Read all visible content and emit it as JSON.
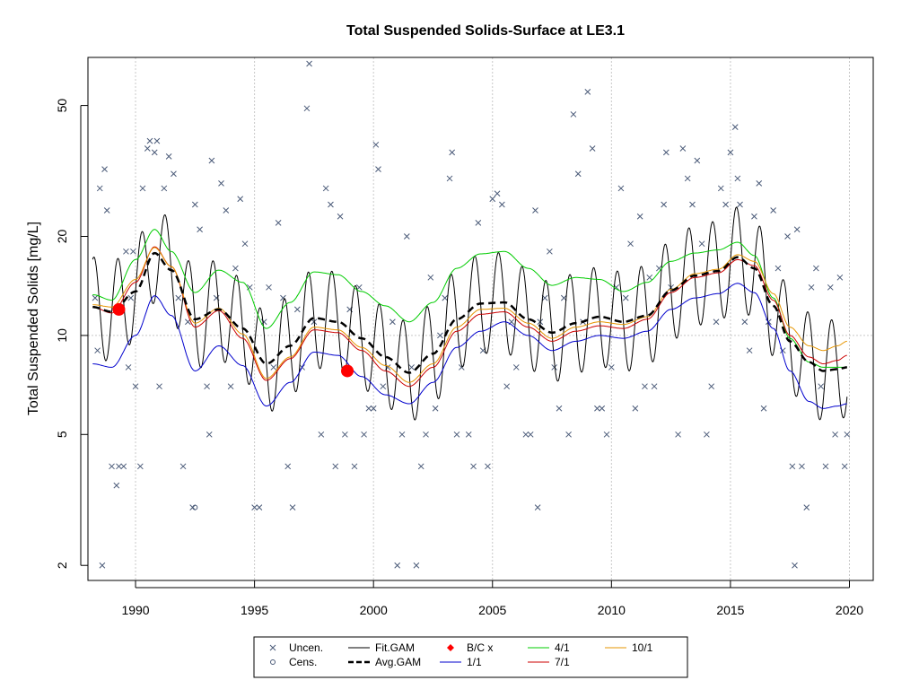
{
  "chart_data": {
    "type": "line",
    "title": "Total Suspended Solids-Surface at LE3.1",
    "xlabel": "",
    "ylabel": "Total Suspended Solids [mg/L]",
    "xlim": [
      1988.0,
      2021.0
    ],
    "ylim": [
      1.8,
      70
    ],
    "y_scale": "log",
    "x_ticks": [
      1990,
      1995,
      2000,
      2005,
      2010,
      2015,
      2020
    ],
    "y_ticks": [
      2,
      5,
      10,
      20,
      50
    ],
    "grid": true,
    "legend_position": "bottom",
    "legend": [
      {
        "label": "Uncen.",
        "symbol": "x",
        "color": "#4a5a78"
      },
      {
        "label": "Cens.",
        "symbol": "o",
        "color": "#4a5a78"
      },
      {
        "label": "Fit.GAM",
        "symbol": "line",
        "color": "#000000"
      },
      {
        "label": "Avg.GAM",
        "symbol": "dashed",
        "color": "#000000"
      },
      {
        "label": "B/C x",
        "symbol": "diamond",
        "color": "#ff0000"
      },
      {
        "label": "1/1",
        "symbol": "line",
        "color": "#0000cd"
      },
      {
        "label": "4/1",
        "symbol": "line",
        "color": "#00cc00"
      },
      {
        "label": "7/1",
        "symbol": "line",
        "color": "#cc0000"
      },
      {
        "label": "10/1",
        "symbol": "line",
        "color": "#e69500"
      }
    ],
    "series": [
      {
        "name": "Avg.GAM",
        "color": "#000000",
        "dash": "dashed",
        "x": [
          1988.2,
          1989,
          1990,
          1990.8,
          1991.5,
          1992.5,
          1993.5,
          1994.5,
          1995.5,
          1996.5,
          1997.5,
          1998.5,
          1999.5,
          2000.5,
          2001.5,
          2002.5,
          2003.5,
          2004.5,
          2005.5,
          2006.5,
          2007.5,
          2008.5,
          2009.5,
          2010.5,
          2011.5,
          2012.5,
          2013.5,
          2014.5,
          2015.3,
          2016,
          2016.8,
          2017.5,
          2018.3,
          2018.9,
          2019.5,
          2019.9
        ],
        "y": [
          12.2,
          11.8,
          13.6,
          17.8,
          15.8,
          11.2,
          12,
          10.5,
          8.2,
          9.3,
          11.3,
          11,
          9.8,
          8.6,
          7.7,
          8.8,
          11.2,
          12.5,
          12.6,
          11.2,
          10.2,
          10.9,
          11.4,
          11,
          11.5,
          13.7,
          15.2,
          15.7,
          17.3,
          16,
          12.3,
          9.6,
          8.3,
          7.8,
          7.9,
          8.0
        ]
      },
      {
        "name": "1/1",
        "color": "#0000cd",
        "dash": "solid",
        "x": [
          1988.2,
          1989,
          1990,
          1990.8,
          1991.5,
          1992.5,
          1993.5,
          1994.5,
          1995.5,
          1996.5,
          1997.5,
          1998.5,
          1999.5,
          2000.5,
          2001.5,
          2002.5,
          2003.5,
          2004.5,
          2005.5,
          2006.5,
          2007.5,
          2008.5,
          2009.5,
          2010.5,
          2011.5,
          2012.5,
          2013.5,
          2014.5,
          2015.3,
          2016,
          2016.8,
          2017.5,
          2018.3,
          2018.9,
          2019.5,
          2019.9
        ],
        "y": [
          8.2,
          8.0,
          10.0,
          13.2,
          11.5,
          7.8,
          9.3,
          8.1,
          6.1,
          7.2,
          8.9,
          8.7,
          7.5,
          6.6,
          6.2,
          7.2,
          9.2,
          10.3,
          11.0,
          10.0,
          9.0,
          9.6,
          10.0,
          9.8,
          10.3,
          12.0,
          13.0,
          13.4,
          14.4,
          13.5,
          10.5,
          7.8,
          6.3,
          6.0,
          6.1,
          6.2
        ]
      },
      {
        "name": "4/1",
        "color": "#00cc00",
        "dash": "solid",
        "x": [
          1988.2,
          1989,
          1990,
          1990.8,
          1991.5,
          1992.5,
          1993.5,
          1994.5,
          1995.5,
          1996.5,
          1997.5,
          1998.5,
          1999.5,
          2000.5,
          2001.5,
          2002.5,
          2003.5,
          2004.5,
          2005.5,
          2006.5,
          2007.5,
          2008.5,
          2009.5,
          2010.5,
          2011.5,
          2012.5,
          2013.5,
          2014.5,
          2015.3,
          2016,
          2016.8,
          2017.5,
          2018.3,
          2018.9,
          2019.5,
          2019.9
        ],
        "y": [
          13.3,
          12.8,
          17.0,
          21.0,
          18.0,
          13.5,
          15.8,
          14.5,
          10.5,
          12.6,
          15.6,
          15.3,
          13.6,
          12.3,
          11.0,
          12.6,
          16.0,
          17.7,
          18.0,
          16.0,
          14.2,
          15.0,
          14.8,
          13.6,
          14.5,
          16.8,
          17.8,
          18.2,
          19.2,
          17.5,
          13.0,
          9.8,
          8.3,
          8.0,
          8.0,
          8.0
        ]
      },
      {
        "name": "7/1",
        "color": "#cc0000",
        "dash": "solid",
        "x": [
          1988.2,
          1989,
          1990,
          1990.8,
          1991.5,
          1992.5,
          1993.5,
          1994.5,
          1995.5,
          1996.5,
          1997.5,
          1998.5,
          1999.5,
          2000.5,
          2001.5,
          2002.5,
          2003.5,
          2004.5,
          2005.5,
          2006.5,
          2007.5,
          2008.5,
          2009.5,
          2010.5,
          2011.5,
          2012.5,
          2013.5,
          2014.5,
          2015.3,
          2016,
          2016.8,
          2017.5,
          2018.3,
          2018.9,
          2019.5,
          2019.9
        ],
        "y": [
          12.2,
          11.7,
          14.5,
          18.6,
          16.2,
          10.6,
          11.9,
          9.8,
          7.3,
          8.5,
          10.4,
          10.2,
          9.0,
          7.8,
          7.0,
          8.0,
          10.3,
          11.6,
          11.8,
          10.6,
          9.6,
          10.3,
          10.7,
          10.5,
          11.2,
          13.5,
          15.0,
          15.5,
          17.0,
          16.3,
          12.8,
          10.0,
          8.6,
          8.2,
          8.4,
          8.7
        ]
      },
      {
        "name": "10/1",
        "color": "#e69500",
        "dash": "solid",
        "x": [
          1988.2,
          1989,
          1990,
          1990.8,
          1991.5,
          1992.5,
          1993.5,
          1994.5,
          1995.5,
          1996.5,
          1997.5,
          1998.5,
          1999.5,
          2000.5,
          2001.5,
          2002.5,
          2003.5,
          2004.5,
          2005.5,
          2006.5,
          2007.5,
          2008.5,
          2009.5,
          2010.5,
          2011.5,
          2012.5,
          2013.5,
          2014.5,
          2015.3,
          2016,
          2016.8,
          2017.5,
          2018.3,
          2018.9,
          2019.5,
          2019.9
        ],
        "y": [
          12.4,
          12.2,
          14.8,
          18.5,
          16.2,
          10.9,
          12.1,
          10.1,
          7.4,
          8.6,
          10.6,
          10.4,
          9.2,
          8.1,
          7.2,
          8.2,
          10.6,
          12.0,
          12.1,
          10.9,
          9.8,
          10.6,
          11.0,
          10.8,
          11.4,
          13.8,
          15.4,
          15.9,
          17.6,
          16.8,
          13.4,
          10.6,
          9.3,
          9.0,
          9.3,
          9.6
        ]
      }
    ],
    "fit_gam": {
      "name": "Fit.GAM",
      "color": "#000000",
      "seasonal_peak_month": 0.25,
      "amplitude_log_ratio": 0.35
    },
    "baseline_points": [
      {
        "label": "B/C x",
        "x": 1989.3,
        "y": 12.0,
        "color": "#ff0000"
      },
      {
        "label": "B/C x",
        "x": 1998.9,
        "y": 7.8,
        "color": "#ff0000"
      }
    ],
    "uncensored_points": [
      [
        1988.3,
        13
      ],
      [
        1988.4,
        9
      ],
      [
        1988.5,
        28
      ],
      [
        1988.6,
        2
      ],
      [
        1988.7,
        32
      ],
      [
        1988.8,
        24
      ],
      [
        1989.0,
        4
      ],
      [
        1989.2,
        3.5
      ],
      [
        1989.3,
        4
      ],
      [
        1989.5,
        4
      ],
      [
        1989.6,
        18
      ],
      [
        1989.7,
        8
      ],
      [
        1989.8,
        13
      ],
      [
        1989.9,
        18
      ],
      [
        1990.0,
        7
      ],
      [
        1990.2,
        4
      ],
      [
        1990.3,
        28
      ],
      [
        1990.5,
        37
      ],
      [
        1990.6,
        39
      ],
      [
        1990.8,
        36
      ],
      [
        1990.9,
        39
      ],
      [
        1991.0,
        7
      ],
      [
        1991.2,
        28
      ],
      [
        1991.4,
        35
      ],
      [
        1991.6,
        31
      ],
      [
        1991.8,
        13
      ],
      [
        1992.0,
        4
      ],
      [
        1992.2,
        11
      ],
      [
        1992.4,
        3
      ],
      [
        1992.5,
        25
      ],
      [
        1992.7,
        21
      ],
      [
        1993.0,
        7
      ],
      [
        1993.1,
        5
      ],
      [
        1993.2,
        34
      ],
      [
        1993.4,
        13
      ],
      [
        1993.6,
        29
      ],
      [
        1993.8,
        24
      ],
      [
        1994.0,
        7
      ],
      [
        1994.2,
        16
      ],
      [
        1994.4,
        26
      ],
      [
        1994.6,
        19
      ],
      [
        1994.8,
        14
      ],
      [
        1995.0,
        3
      ],
      [
        1995.2,
        3
      ],
      [
        1995.4,
        11
      ],
      [
        1995.6,
        14
      ],
      [
        1995.8,
        8
      ],
      [
        1996.0,
        22
      ],
      [
        1996.2,
        13
      ],
      [
        1996.4,
        4
      ],
      [
        1996.6,
        3
      ],
      [
        1996.8,
        12
      ],
      [
        1997.0,
        8
      ],
      [
        1997.2,
        49
      ],
      [
        1997.3,
        67
      ],
      [
        1997.5,
        11
      ],
      [
        1997.8,
        5
      ],
      [
        1998.0,
        28
      ],
      [
        1998.2,
        25
      ],
      [
        1998.4,
        4
      ],
      [
        1998.6,
        23
      ],
      [
        1998.8,
        5
      ],
      [
        1999.0,
        12
      ],
      [
        1999.2,
        4
      ],
      [
        1999.4,
        14
      ],
      [
        1999.6,
        5
      ],
      [
        1999.8,
        6
      ],
      [
        2000.0,
        6
      ],
      [
        2000.1,
        38
      ],
      [
        2000.2,
        32
      ],
      [
        2000.4,
        7
      ],
      [
        2000.6,
        8
      ],
      [
        2000.8,
        11
      ],
      [
        2001.0,
        2
      ],
      [
        2001.2,
        5
      ],
      [
        2001.4,
        20
      ],
      [
        2001.6,
        8
      ],
      [
        2001.8,
        2
      ],
      [
        2002.0,
        4
      ],
      [
        2002.2,
        5
      ],
      [
        2002.4,
        15
      ],
      [
        2002.6,
        6
      ],
      [
        2002.8,
        10
      ],
      [
        2003.0,
        13
      ],
      [
        2003.2,
        30
      ],
      [
        2003.3,
        36
      ],
      [
        2003.5,
        5
      ],
      [
        2003.7,
        8
      ],
      [
        2004.0,
        5
      ],
      [
        2004.2,
        4
      ],
      [
        2004.4,
        22
      ],
      [
        2004.6,
        9
      ],
      [
        2004.8,
        4
      ],
      [
        2005.0,
        26
      ],
      [
        2005.2,
        27
      ],
      [
        2005.4,
        25
      ],
      [
        2005.6,
        7
      ],
      [
        2005.8,
        11
      ],
      [
        2006.0,
        8
      ],
      [
        2006.4,
        5
      ],
      [
        2006.6,
        5
      ],
      [
        2006.8,
        24
      ],
      [
        2006.9,
        3
      ],
      [
        2007.0,
        11
      ],
      [
        2007.2,
        13
      ],
      [
        2007.4,
        18
      ],
      [
        2007.6,
        8
      ],
      [
        2007.8,
        6
      ],
      [
        2008.0,
        13
      ],
      [
        2008.2,
        5
      ],
      [
        2008.4,
        47
      ],
      [
        2008.6,
        31
      ],
      [
        2008.8,
        11
      ],
      [
        2009.0,
        55
      ],
      [
        2009.2,
        37
      ],
      [
        2009.4,
        6
      ],
      [
        2009.6,
        6
      ],
      [
        2009.8,
        5
      ],
      [
        2010.0,
        8
      ],
      [
        2010.2,
        14
      ],
      [
        2010.4,
        28
      ],
      [
        2010.6,
        13
      ],
      [
        2010.8,
        19
      ],
      [
        2011.0,
        6
      ],
      [
        2011.2,
        23
      ],
      [
        2011.4,
        7
      ],
      [
        2011.6,
        15
      ],
      [
        2011.8,
        7
      ],
      [
        2012.0,
        16
      ],
      [
        2012.2,
        25
      ],
      [
        2012.3,
        36
      ],
      [
        2012.5,
        14
      ],
      [
        2012.8,
        5
      ],
      [
        2013.0,
        37
      ],
      [
        2013.2,
        30
      ],
      [
        2013.4,
        25
      ],
      [
        2013.6,
        34
      ],
      [
        2013.8,
        19
      ],
      [
        2014.0,
        5
      ],
      [
        2014.2,
        7
      ],
      [
        2014.4,
        11
      ],
      [
        2014.6,
        28
      ],
      [
        2014.8,
        25
      ],
      [
        2015.0,
        36
      ],
      [
        2015.2,
        43
      ],
      [
        2015.3,
        30
      ],
      [
        2015.4,
        25
      ],
      [
        2015.6,
        11
      ],
      [
        2015.8,
        9
      ],
      [
        2016.0,
        23
      ],
      [
        2016.2,
        29
      ],
      [
        2016.4,
        6
      ],
      [
        2016.6,
        11
      ],
      [
        2016.8,
        24
      ],
      [
        2017.0,
        16
      ],
      [
        2017.2,
        9
      ],
      [
        2017.4,
        20
      ],
      [
        2017.6,
        4
      ],
      [
        2017.7,
        2
      ],
      [
        2017.8,
        21
      ],
      [
        2018.0,
        4
      ],
      [
        2018.2,
        3
      ],
      [
        2018.4,
        14
      ],
      [
        2018.6,
        16
      ],
      [
        2018.8,
        7
      ],
      [
        2019.0,
        4
      ],
      [
        2019.2,
        14
      ],
      [
        2019.4,
        5
      ],
      [
        2019.6,
        15
      ],
      [
        2019.8,
        4
      ],
      [
        2019.9,
        5
      ]
    ],
    "censored_points": [
      [
        1992.5,
        3
      ]
    ]
  }
}
